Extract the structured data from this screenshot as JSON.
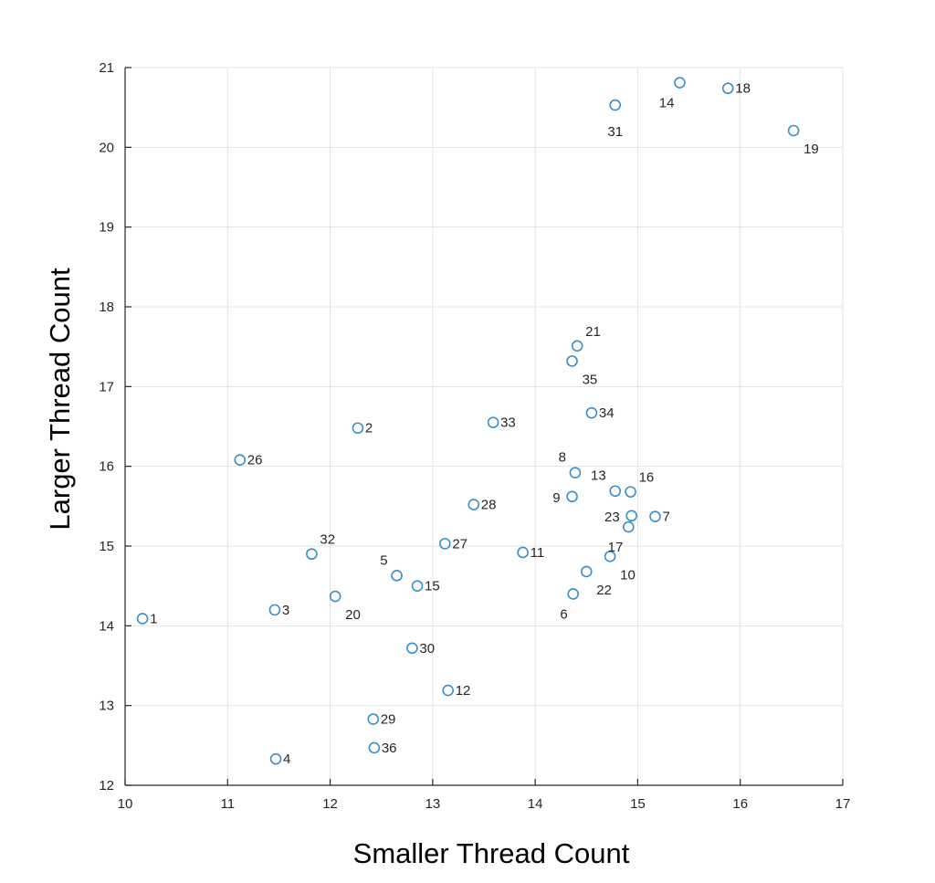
{
  "chart_data": {
    "type": "scatter",
    "xlabel": "Smaller Thread Count",
    "ylabel": "Larger Thread Count",
    "xlim": [
      10,
      17
    ],
    "ylim": [
      12,
      21
    ],
    "x_ticks": [
      10,
      11,
      12,
      13,
      14,
      15,
      16,
      17
    ],
    "y_ticks": [
      12,
      13,
      14,
      15,
      16,
      17,
      18,
      19,
      20,
      21
    ],
    "grid": true,
    "marker_color": "#3a8fc7",
    "points": [
      {
        "label": "1",
        "x": 10.17,
        "y": 14.09,
        "pos": "right"
      },
      {
        "label": "2",
        "x": 12.27,
        "y": 16.48,
        "pos": "right"
      },
      {
        "label": "3",
        "x": 11.46,
        "y": 14.2,
        "pos": "right"
      },
      {
        "label": "4",
        "x": 11.47,
        "y": 12.33,
        "pos": "right"
      },
      {
        "label": "5",
        "x": 12.65,
        "y": 14.63,
        "pos": "above-left"
      },
      {
        "label": "6",
        "x": 14.37,
        "y": 14.4,
        "pos": "below-left"
      },
      {
        "label": "7",
        "x": 15.17,
        "y": 15.37,
        "pos": "right"
      },
      {
        "label": "8",
        "x": 14.39,
        "y": 15.92,
        "pos": "above-left"
      },
      {
        "label": "9",
        "x": 14.36,
        "y": 15.62,
        "pos": "left"
      },
      {
        "label": "10",
        "x": 14.73,
        "y": 14.87,
        "pos": "below-right"
      },
      {
        "label": "11",
        "x": 13.88,
        "y": 14.92,
        "pos": "right"
      },
      {
        "label": "12",
        "x": 13.15,
        "y": 13.19,
        "pos": "right"
      },
      {
        "label": "13",
        "x": 14.78,
        "y": 15.69,
        "pos": "above-left"
      },
      {
        "label": "14",
        "x": 15.41,
        "y": 20.81,
        "pos": "below-left"
      },
      {
        "label": "15",
        "x": 12.85,
        "y": 14.5,
        "pos": "right"
      },
      {
        "label": "16",
        "x": 14.93,
        "y": 15.68,
        "pos": "above-right"
      },
      {
        "label": "17",
        "x": 14.91,
        "y": 15.24,
        "pos": "below-left"
      },
      {
        "label": "18",
        "x": 15.88,
        "y": 20.74,
        "pos": "right"
      },
      {
        "label": "19",
        "x": 16.52,
        "y": 20.21,
        "pos": "below-right"
      },
      {
        "label": "20",
        "x": 12.05,
        "y": 14.37,
        "pos": "below-right"
      },
      {
        "label": "21",
        "x": 14.41,
        "y": 17.51,
        "pos": "above-right"
      },
      {
        "label": "22",
        "x": 14.5,
        "y": 14.68,
        "pos": "below-right"
      },
      {
        "label": "23",
        "x": 14.94,
        "y": 15.38,
        "pos": "left"
      },
      {
        "label": "26",
        "x": 11.12,
        "y": 16.08,
        "pos": "right"
      },
      {
        "label": "27",
        "x": 13.12,
        "y": 15.03,
        "pos": "right"
      },
      {
        "label": "28",
        "x": 13.4,
        "y": 15.52,
        "pos": "right"
      },
      {
        "label": "29",
        "x": 12.42,
        "y": 12.83,
        "pos": "right"
      },
      {
        "label": "30",
        "x": 12.8,
        "y": 13.72,
        "pos": "right"
      },
      {
        "label": "31",
        "x": 14.78,
        "y": 20.53,
        "pos": "below"
      },
      {
        "label": "32",
        "x": 11.82,
        "y": 14.9,
        "pos": "above-right"
      },
      {
        "label": "33",
        "x": 13.59,
        "y": 16.55,
        "pos": "right"
      },
      {
        "label": "34",
        "x": 14.55,
        "y": 16.67,
        "pos": "right"
      },
      {
        "label": "35",
        "x": 14.36,
        "y": 17.32,
        "pos": "below-right"
      },
      {
        "label": "36",
        "x": 12.43,
        "y": 12.47,
        "pos": "right"
      }
    ]
  }
}
